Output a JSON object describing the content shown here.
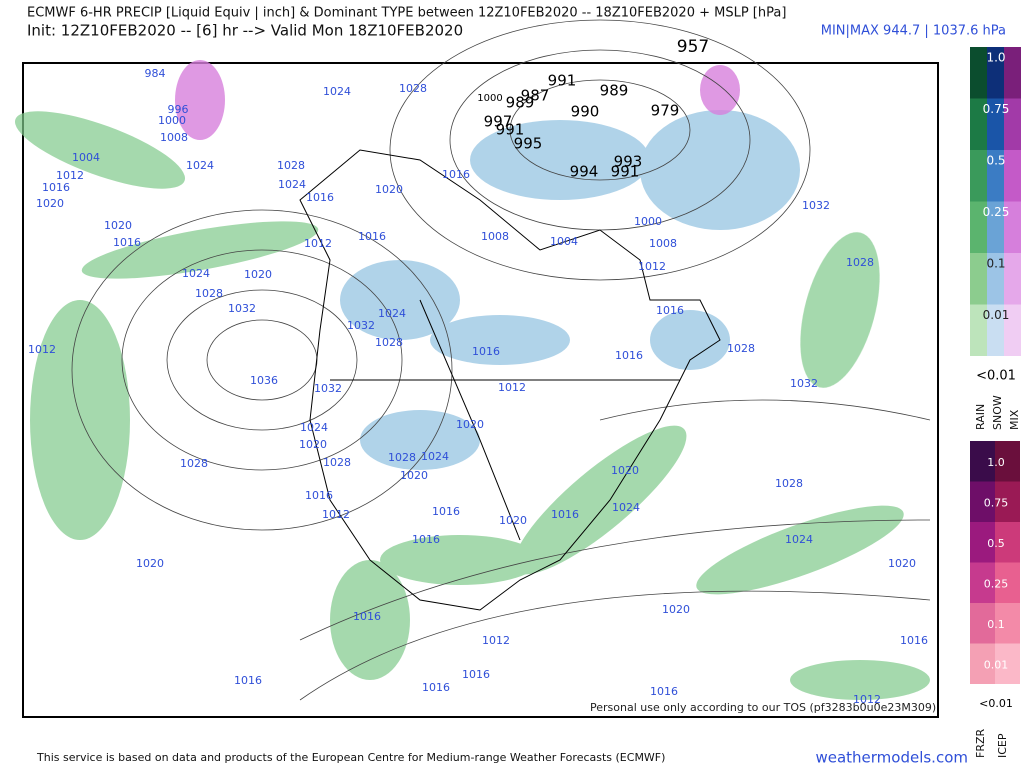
{
  "header": {
    "title": "ECMWF 6-HR PRECIP [Liquid Equiv | inch] & Dominant TYPE between 12Z10FEB2020 -- 18Z10FEB2020 + MSLP [hPa]",
    "init": "Init: 12Z10FEB2020 -- [6] hr --> Valid Mon 18Z10FEB2020",
    "minmax": "MIN|MAX 944.7 | 1037.6 hPa"
  },
  "map": {
    "center_labels": [
      "957",
      "991",
      "989",
      "990",
      "979",
      "987",
      "1000",
      "989",
      "997",
      "991",
      "995",
      "994",
      "993",
      "991"
    ],
    "isobar_labels": [
      "984",
      "996",
      "1000",
      "1008",
      "1004",
      "1012",
      "1016",
      "1020",
      "1024",
      "1024",
      "1028",
      "1028",
      "1024",
      "1020",
      "1016",
      "1016",
      "1016",
      "1012",
      "1008",
      "1004",
      "1000",
      "1008",
      "1012",
      "1032",
      "1028",
      "1020",
      "1016",
      "1024",
      "1020",
      "1028",
      "1032",
      "1012",
      "1036",
      "1032",
      "1024",
      "1028",
      "1016",
      "1016",
      "1016",
      "1028",
      "1032",
      "1012",
      "1032",
      "1024",
      "1020",
      "1028",
      "1028",
      "1024",
      "1020",
      "1020",
      "1028",
      "1016",
      "1012",
      "1016",
      "1016",
      "1020",
      "1016",
      "1024",
      "1020",
      "1028",
      "1024",
      "1020",
      "1020",
      "1016",
      "1012",
      "1020",
      "1016",
      "1016",
      "1016",
      "1016",
      "1016",
      "1012"
    ],
    "watermark": "Personal use only according to our TOS (pf3283b0u0e23M309)"
  },
  "legend": {
    "precip_levels": [
      "1.0",
      "0.75",
      "0.5",
      "0.25",
      "0.1",
      "0.01"
    ],
    "precip_below": "<0.01",
    "precip_types": [
      "RAIN",
      "SNOW",
      "MIX"
    ],
    "ice_levels": [
      "1.0",
      "0.75",
      "0.5",
      "0.25",
      "0.1",
      "0.01"
    ],
    "ice_below": "<0.01",
    "ice_types": [
      "FRZR",
      "ICEP"
    ]
  },
  "footer": {
    "disclaimer": "This service is based on data and products of the European Centre for Medium-range Weather Forecasts (ECMWF)",
    "site": "weathermodels.com"
  }
}
